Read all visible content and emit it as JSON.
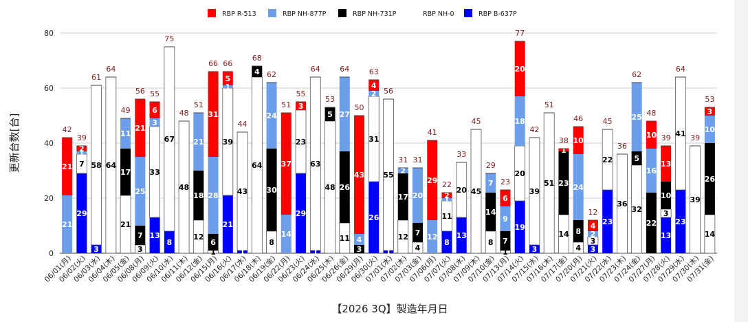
{
  "chart_data": {
    "type": "bar",
    "stacked": true,
    "xlabel": "【2026 3Q】製造年月日",
    "ylabel": "更新台数[台]",
    "ylim": [
      0,
      80
    ],
    "yticks": [
      0,
      20,
      40,
      60,
      80
    ],
    "grid": true,
    "legend_position": "top",
    "categories": [
      "06/01(月)",
      "06/02(火)",
      "06/03(水)",
      "06/04(木)",
      "06/05(金)",
      "06/08(月)",
      "06/09(火)",
      "06/10(水)",
      "06/11(木)",
      "06/12(金)",
      "06/15(月)",
      "06/16(火)",
      "06/17(水)",
      "06/18(木)",
      "06/19(金)",
      "06/22(月)",
      "06/23(火)",
      "06/24(水)",
      "06/25(木)",
      "06/26(金)",
      "06/29(月)",
      "06/30(火)",
      "07/01(水)",
      "07/02(木)",
      "07/03(金)",
      "07/06(月)",
      "07/07(火)",
      "07/08(水)",
      "07/09(木)",
      "07/10(金)",
      "07/13(月)",
      "07/14(火)",
      "07/15(水)",
      "07/16(木)",
      "07/17(金)",
      "07/20(月)",
      "07/21(火)",
      "07/22(水)",
      "07/23(木)",
      "07/24(金)",
      "07/27(月)",
      "07/28(火)",
      "07/29(水)",
      "07/30(木)",
      "07/31(金)"
    ],
    "totals": [
      42,
      39,
      61,
      64,
      49,
      56,
      55,
      75,
      48,
      51,
      66,
      66,
      44,
      68,
      62,
      51,
      55,
      64,
      53,
      64,
      50,
      63,
      56,
      31,
      31,
      41,
      22,
      33,
      45,
      29,
      23,
      77,
      42,
      51,
      38,
      46,
      12,
      45,
      36,
      62,
      48,
      39,
      64,
      39,
      53
    ],
    "series": [
      {
        "name": "RBP B-637P",
        "color": "#0000ff",
        "values": [
          0,
          29,
          3,
          0,
          0,
          0,
          13,
          8,
          0,
          0,
          0,
          21,
          1,
          0,
          0,
          0,
          29,
          1,
          0,
          0,
          0,
          26,
          1,
          0,
          0,
          0,
          8,
          13,
          0,
          0,
          0,
          19,
          3,
          0,
          0,
          0,
          3,
          23,
          0,
          0,
          0,
          13,
          23,
          0,
          0
        ]
      },
      {
        "name": "RBP NH-0",
        "color": "#ffffff",
        "values": [
          0,
          7,
          58,
          64,
          21,
          3,
          33,
          67,
          48,
          12,
          1,
          39,
          43,
          64,
          8,
          0,
          23,
          63,
          48,
          11,
          0,
          31,
          55,
          12,
          4,
          0,
          11,
          20,
          45,
          8,
          1,
          20,
          39,
          51,
          14,
          4,
          3,
          22,
          36,
          32,
          0,
          3,
          41,
          39,
          14
        ]
      },
      {
        "name": "RBP NH-731P",
        "color": "#000000",
        "values": [
          0,
          0,
          0,
          0,
          17,
          7,
          0,
          0,
          0,
          18,
          6,
          0,
          0,
          4,
          30,
          0,
          0,
          0,
          5,
          26,
          3,
          0,
          0,
          17,
          7,
          0,
          0,
          0,
          0,
          14,
          7,
          0,
          0,
          0,
          23,
          8,
          0,
          0,
          0,
          5,
          22,
          10,
          0,
          0,
          26
        ]
      },
      {
        "name": "RBP NH-877P",
        "color": "#6d9eeb",
        "values": [
          21,
          1,
          0,
          0,
          11,
          25,
          3,
          0,
          0,
          21,
          28,
          1,
          0,
          0,
          24,
          14,
          0,
          0,
          0,
          27,
          4,
          2,
          0,
          2,
          20,
          12,
          1,
          0,
          0,
          7,
          9,
          18,
          0,
          0,
          0,
          24,
          2,
          0,
          0,
          25,
          16,
          0,
          0,
          0,
          10
        ]
      },
      {
        "name": "RBP R-513",
        "color": "#ff0000",
        "values": [
          21,
          2,
          0,
          0,
          0,
          21,
          6,
          0,
          0,
          0,
          31,
          5,
          0,
          0,
          0,
          37,
          3,
          0,
          0,
          0,
          43,
          4,
          0,
          0,
          0,
          29,
          2,
          0,
          0,
          0,
          6,
          20,
          0,
          0,
          1,
          10,
          4,
          0,
          0,
          0,
          10,
          13,
          0,
          0,
          3
        ]
      }
    ],
    "legend_order": [
      "RBP R-513",
      "RBP NH-877P",
      "RBP NH-731P",
      "RBP NH-0",
      "RBP B-637P"
    ]
  }
}
